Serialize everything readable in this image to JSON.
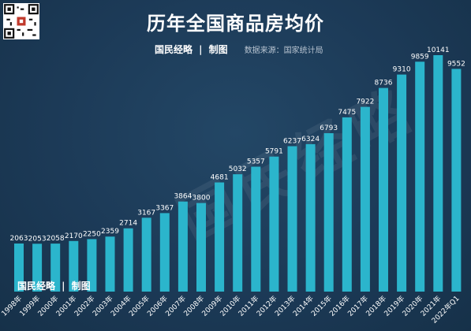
{
  "header": {
    "title": "历年全国商品房均价",
    "brand": "国民经略",
    "divider": "|",
    "brand_suffix": "制图",
    "source": "数据来源：国家统计局"
  },
  "watermark": {
    "text": "国民经略"
  },
  "footer_brand": {
    "brand": "国民经略",
    "divider": "|",
    "suffix": "制图"
  },
  "colors": {
    "background": "#1c3a57",
    "bar": "#2bb5cc",
    "label": "#ffffff"
  },
  "chart_data": {
    "type": "bar",
    "title": "历年全国商品房均价",
    "xlabel": "",
    "ylabel": "",
    "categories": [
      "1998年",
      "1999年",
      "2000年",
      "2001年",
      "2002年",
      "2003年",
      "2004年",
      "2005年",
      "2006年",
      "2007年",
      "2008年",
      "2009年",
      "2010年",
      "2011年",
      "2012年",
      "2013年",
      "2014年",
      "2015年",
      "2016年",
      "2017年",
      "2018年",
      "2019年",
      "2020年",
      "2021年",
      "2022年Q1"
    ],
    "values": [
      2063,
      2053,
      2058,
      2170,
      2250,
      2359,
      2714,
      3167,
      3367,
      3864,
      3800,
      4681,
      5032,
      5357,
      5791,
      6237,
      6324,
      6793,
      7475,
      7922,
      8736,
      9310,
      9859,
      10141,
      9552
    ],
    "ylim": [
      0,
      10141
    ],
    "grid": false,
    "legend": "none",
    "data_labels": true
  }
}
